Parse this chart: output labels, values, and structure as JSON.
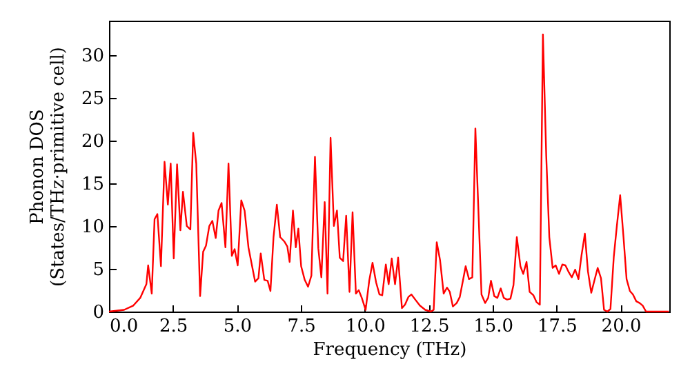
{
  "chart_data": {
    "type": "line",
    "xlabel": "Frequency (THz)",
    "ylabel": "Phonon DOS\n(States/THz·primitive cell)",
    "xlim": [
      0,
      21.9
    ],
    "ylim": [
      0,
      34
    ],
    "xticks": [
      {
        "value": 0,
        "label": "0.0"
      },
      {
        "value": 2.5,
        "label": "2.5"
      },
      {
        "value": 5,
        "label": "5.0"
      },
      {
        "value": 7.5,
        "label": "7.5"
      },
      {
        "value": 10,
        "label": "10.0"
      },
      {
        "value": 12.5,
        "label": "12.5"
      },
      {
        "value": 15,
        "label": "15.0"
      },
      {
        "value": 17.5,
        "label": "17.5"
      },
      {
        "value": 20,
        "label": "20.0"
      }
    ],
    "yticks": [
      0,
      5,
      10,
      15,
      20,
      25,
      30
    ],
    "grid": false,
    "marker": "none",
    "line_style": "solid",
    "series": [
      {
        "color": "#ff0000",
        "x": [
          0,
          0.59,
          0.95,
          1.22,
          1.37,
          1.46,
          1.53,
          1.67,
          1.78,
          1.89,
          2.03,
          2.17,
          2.3,
          2.41,
          2.53,
          2.66,
          2.79,
          2.89,
          3.04,
          3.18,
          3.29,
          3.41,
          3.56,
          3.68,
          3.79,
          3.92,
          4.04,
          4.17,
          4.28,
          4.4,
          4.55,
          4.67,
          4.8,
          4.91,
          5.03,
          5.17,
          5.3,
          5.45,
          5.71,
          5.84,
          5.93,
          6.07,
          6.2,
          6.31,
          6.43,
          6.56,
          6.69,
          6.85,
          6.97,
          7.06,
          7.19,
          7.3,
          7.4,
          7.51,
          7.65,
          7.78,
          7.91,
          8.05,
          8.18,
          8.3,
          8.43,
          8.54,
          8.66,
          8.79,
          8.91,
          9.02,
          9.15,
          9.27,
          9.4,
          9.52,
          9.65,
          9.76,
          9.88,
          10.03,
          10.17,
          10.3,
          10.44,
          10.57,
          10.68,
          10.82,
          10.93,
          11.05,
          11.18,
          11.3,
          11.45,
          11.57,
          11.7,
          11.82,
          11.97,
          12.15,
          12.36,
          12.58,
          12.69,
          12.81,
          12.94,
          13.08,
          13.21,
          13.32,
          13.44,
          13.59,
          13.71,
          13.84,
          13.94,
          14.07,
          14.2,
          14.32,
          14.56,
          14.7,
          14.82,
          14.93,
          15.06,
          15.18,
          15.31,
          15.43,
          15.56,
          15.69,
          15.81,
          15.94,
          16.08,
          16.19,
          16.32,
          16.44,
          16.59,
          16.71,
          16.84,
          16.96,
          17.09,
          17.21,
          17.34,
          17.46,
          17.59,
          17.72,
          17.84,
          17.97,
          18.09,
          18.22,
          18.35,
          18.47,
          18.6,
          18.72,
          18.85,
          18.97,
          19.1,
          19.23,
          19.35,
          19.48,
          19.6,
          19.73,
          19.85,
          19.98,
          20.11,
          20.23,
          20.36,
          20.48,
          20.61,
          20.74,
          20.86,
          20.99,
          21.88
        ],
        "values": [
          0,
          0.2,
          0.7,
          1.6,
          2.6,
          3.2,
          5.4,
          2.1,
          10.8,
          11.4,
          5.3,
          17.5,
          12.5,
          17.3,
          6.2,
          17.2,
          9.5,
          14.0,
          10.0,
          9.6,
          20.9,
          17.3,
          1.8,
          7.0,
          7.7,
          10.0,
          10.6,
          8.6,
          11.8,
          12.7,
          7.5,
          17.3,
          6.5,
          7.3,
          5.4,
          13.0,
          11.8,
          7.5,
          3.5,
          3.9,
          6.8,
          3.7,
          3.6,
          2.4,
          8.7,
          12.5,
          8.7,
          8.2,
          7.6,
          5.8,
          11.8,
          7.5,
          9.7,
          5.3,
          3.7,
          2.9,
          4.2,
          18.1,
          7.4,
          4.0,
          12.8,
          2.1,
          20.3,
          10.0,
          11.8,
          6.3,
          5.9,
          11.2,
          2.3,
          11.6,
          2.1,
          2.5,
          1.6,
          0.2,
          3.6,
          5.7,
          3.4,
          2.0,
          1.9,
          5.5,
          3.2,
          6.2,
          3.2,
          6.3,
          0.4,
          0.8,
          1.7,
          2.0,
          1.4,
          0.7,
          0.2,
          0,
          0.2,
          8.1,
          6.0,
          2.1,
          2.8,
          2.3,
          0.6,
          1.0,
          1.7,
          3.7,
          5.3,
          3.8,
          4.0,
          21.4,
          2.0,
          1.0,
          1.6,
          3.6,
          1.8,
          1.6,
          2.7,
          1.6,
          1.4,
          1.5,
          3.1,
          8.7,
          5.3,
          4.4,
          5.8,
          2.3,
          1.9,
          1.1,
          0.8,
          32.4,
          18.2,
          8.7,
          5.1,
          5.4,
          4.4,
          5.5,
          5.4,
          4.6,
          4.0,
          4.9,
          3.8,
          6.6,
          9.1,
          4.7,
          2.2,
          3.6,
          5.1,
          3.9,
          0.2,
          0,
          0.3,
          6.4,
          10.0,
          13.6,
          8.7,
          3.8,
          2.4,
          2.0,
          1.2,
          1.0,
          0.7,
          0,
          0
        ]
      }
    ]
  }
}
